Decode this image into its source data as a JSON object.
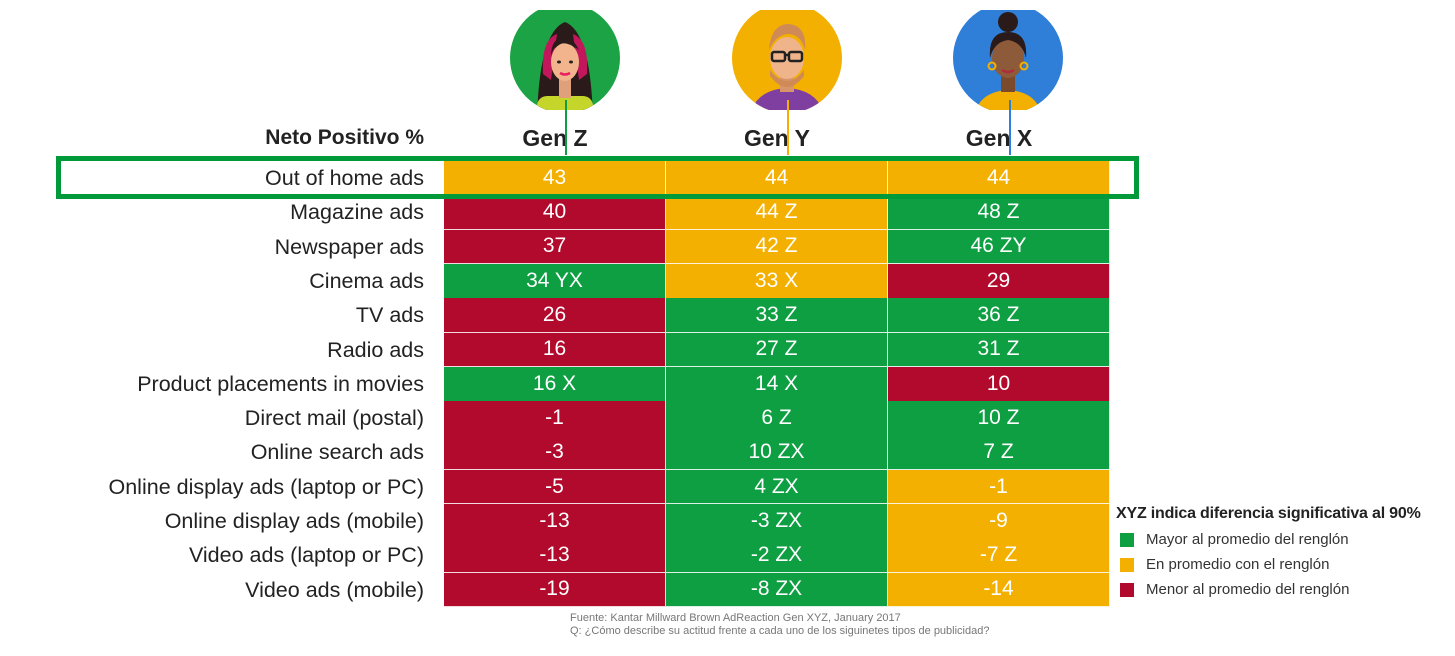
{
  "colors": {
    "mayor": "#0e9f42",
    "promedio": "#f4b000",
    "menor": "#b20a2c",
    "highlight": "#009a3a"
  },
  "chart_data": {
    "type": "table",
    "metric_title": "Neto Positivo %",
    "columns": [
      {
        "label": "Gen Z",
        "avatar": "gen-z-woman-avatar",
        "circle_color": "#1ba345",
        "line_color": "#0e9f42"
      },
      {
        "label": "Gen Y",
        "avatar": "gen-y-man-glasses-avatar",
        "circle_color": "#f4b000",
        "line_color": "#f4b000"
      },
      {
        "label": "Gen X",
        "avatar": "gen-x-woman-bun-avatar",
        "circle_color": "#2f7fd8",
        "line_color": "#2f7fd8"
      }
    ],
    "highlighted_row": "Out of home ads",
    "rows": [
      {
        "label": "Out of home ads",
        "cells": [
          {
            "text": "43",
            "value": 43,
            "level": "promedio"
          },
          {
            "text": "44",
            "value": 44,
            "level": "promedio"
          },
          {
            "text": "44",
            "value": 44,
            "level": "promedio"
          }
        ]
      },
      {
        "label": "Magazine ads",
        "cells": [
          {
            "text": "40",
            "value": 40,
            "level": "menor"
          },
          {
            "text": "44 Z",
            "value": 44,
            "level": "promedio"
          },
          {
            "text": "48 Z",
            "value": 48,
            "level": "mayor"
          }
        ]
      },
      {
        "label": "Newspaper ads",
        "cells": [
          {
            "text": "37",
            "value": 37,
            "level": "menor"
          },
          {
            "text": "42 Z",
            "value": 42,
            "level": "promedio"
          },
          {
            "text": "46 ZY",
            "value": 46,
            "level": "mayor"
          }
        ]
      },
      {
        "label": "Cinema ads",
        "cells": [
          {
            "text": "34 YX",
            "value": 34,
            "level": "mayor"
          },
          {
            "text": "33 X",
            "value": 33,
            "level": "promedio"
          },
          {
            "text": "29",
            "value": 29,
            "level": "menor"
          }
        ]
      },
      {
        "label": "TV ads",
        "cells": [
          {
            "text": "26",
            "value": 26,
            "level": "menor"
          },
          {
            "text": "33 Z",
            "value": 33,
            "level": "mayor"
          },
          {
            "text": "36 Z",
            "value": 36,
            "level": "mayor"
          }
        ]
      },
      {
        "label": "Radio ads",
        "cells": [
          {
            "text": "16",
            "value": 16,
            "level": "menor"
          },
          {
            "text": "27 Z",
            "value": 27,
            "level": "mayor"
          },
          {
            "text": "31 Z",
            "value": 31,
            "level": "mayor"
          }
        ]
      },
      {
        "label": "Product placements in movies",
        "cells": [
          {
            "text": "16 X",
            "value": 16,
            "level": "mayor"
          },
          {
            "text": "14 X",
            "value": 14,
            "level": "mayor"
          },
          {
            "text": "10",
            "value": 10,
            "level": "menor"
          }
        ]
      },
      {
        "label": "Direct mail (postal)",
        "cells": [
          {
            "text": "-1",
            "value": -1,
            "level": "menor"
          },
          {
            "text": "6 Z",
            "value": 6,
            "level": "mayor"
          },
          {
            "text": "10 Z",
            "value": 10,
            "level": "mayor"
          }
        ]
      },
      {
        "label": "Online search ads",
        "cells": [
          {
            "text": "-3",
            "value": -3,
            "level": "menor"
          },
          {
            "text": "10 ZX",
            "value": 10,
            "level": "mayor"
          },
          {
            "text": "7 Z",
            "value": 7,
            "level": "mayor"
          }
        ]
      },
      {
        "label": "Online display ads (laptop or PC)",
        "cells": [
          {
            "text": "-5",
            "value": -5,
            "level": "menor"
          },
          {
            "text": "4 ZX",
            "value": 4,
            "level": "mayor"
          },
          {
            "text": "-1",
            "value": -1,
            "level": "promedio"
          }
        ]
      },
      {
        "label": "Online display  ads (mobile)",
        "cells": [
          {
            "text": "-13",
            "value": -13,
            "level": "menor"
          },
          {
            "text": "-3 ZX",
            "value": -3,
            "level": "mayor"
          },
          {
            "text": "-9",
            "value": -9,
            "level": "promedio"
          }
        ]
      },
      {
        "label": "Video ads (laptop or PC)",
        "cells": [
          {
            "text": "-13",
            "value": -13,
            "level": "menor"
          },
          {
            "text": "-2 ZX",
            "value": -2,
            "level": "mayor"
          },
          {
            "text": "-7 Z",
            "value": -7,
            "level": "promedio"
          }
        ]
      },
      {
        "label": "Video ads (mobile)",
        "cells": [
          {
            "text": "-19",
            "value": -19,
            "level": "menor"
          },
          {
            "text": "-8 ZX",
            "value": -8,
            "level": "mayor"
          },
          {
            "text": "-14",
            "value": -14,
            "level": "promedio"
          }
        ]
      }
    ],
    "legend": {
      "title": "XYZ indica diferencia significativa al 90%",
      "items": [
        {
          "level": "mayor",
          "label": "Mayor al promedio del renglón"
        },
        {
          "level": "promedio",
          "label": "En promedio con el renglón"
        },
        {
          "level": "menor",
          "label": "Menor al promedio del renglón"
        }
      ]
    },
    "source": {
      "line1": "Fuente: Kantar Millward Brown AdReaction Gen XYZ, January 2017",
      "line2": "Q: ¿Cómo describe su actitud frente a cada uno de los siguinetes tipos de publicidad?"
    }
  }
}
